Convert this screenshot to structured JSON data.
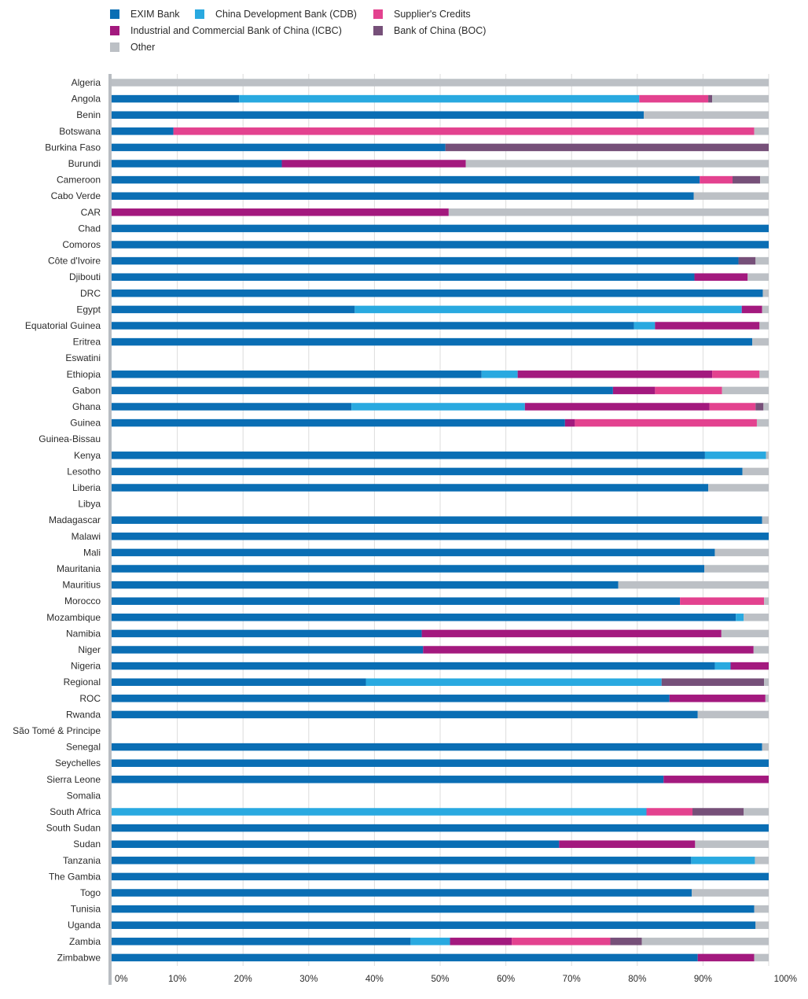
{
  "chart_data": {
    "type": "bar",
    "orientation": "horizontal",
    "stacked": true,
    "title": "",
    "xlabel": "",
    "ylabel": "",
    "xlim": [
      0,
      100
    ],
    "grid": true,
    "legend_position": "top-left",
    "x_ticks": [
      "0%",
      "10%",
      "20%",
      "30%",
      "40%",
      "50%",
      "60%",
      "70%",
      "80%",
      "90%",
      "100%"
    ],
    "categories": [
      "Algeria",
      "Angola",
      "Benin",
      "Botswana",
      "Burkina Faso",
      "Burundi",
      "Cameroon",
      "Cabo Verde",
      "CAR",
      "Chad",
      "Comoros",
      "Côte d'Ivoire",
      "Djibouti",
      "DRC",
      "Egypt",
      "Equatorial Guinea",
      "Eritrea",
      "Eswatini",
      "Ethiopia",
      "Gabon",
      "Ghana",
      "Guinea",
      "Guinea-Bissau",
      "Kenya",
      "Lesotho",
      "Liberia",
      "Libya",
      "Madagascar",
      "Malawi",
      "Mali",
      "Mauritania",
      "Mauritius",
      "Morocco",
      "Mozambique",
      "Namibia",
      "Niger",
      "Nigeria",
      "Regional",
      "ROC",
      "Rwanda",
      "São Tomé & Principe",
      "Senegal",
      "Seychelles",
      "Sierra Leone",
      "Somalia",
      "South Africa",
      "South Sudan",
      "Sudan",
      "Tanzania",
      "The Gambia",
      "Togo",
      "Tunisia",
      "Uganda",
      "Zambia",
      "Zimbabwe"
    ],
    "series": [
      {
        "name": "EXIM Bank",
        "color": "#0a6eb4",
        "values": [
          0,
          19.4,
          81,
          9.4,
          50.8,
          25.9,
          89.5,
          88.6,
          0,
          100,
          100,
          95.4,
          88.7,
          99.1,
          37,
          79.5,
          97.5,
          0,
          56.3,
          76.3,
          36.5,
          69,
          0,
          90.3,
          96,
          90.8,
          0,
          99,
          100,
          91.8,
          90.2,
          77.1,
          86.5,
          95,
          47.2,
          47.4,
          91.8,
          38.7,
          84.9,
          89.2,
          0,
          99,
          100,
          84,
          0,
          0,
          100,
          68.1,
          88.2,
          100,
          88.3,
          97.8,
          98,
          45.5,
          89.2
        ]
      },
      {
        "name": "China Development Bank (CDB)",
        "color": "#29a9e0",
        "values": [
          0,
          60.9,
          0,
          0,
          0,
          0,
          0,
          0,
          0,
          0,
          0,
          0,
          0,
          0,
          58.9,
          3.2,
          0,
          0,
          5.5,
          0,
          26.4,
          0,
          0,
          9.3,
          0,
          0,
          0,
          0,
          0,
          0,
          0,
          0,
          0,
          1.2,
          0,
          0,
          2.4,
          45,
          0,
          0,
          0,
          0,
          0,
          0,
          0,
          81.4,
          0,
          0,
          9.7,
          0,
          0,
          0,
          0,
          6,
          0
        ]
      },
      {
        "name": "Industrial and Commercial Bank of China (ICBC)",
        "color": "#a3197e",
        "values": [
          0,
          0,
          0,
          0,
          0,
          28,
          0,
          0,
          51.3,
          0,
          0,
          0,
          8.1,
          0,
          3.1,
          15.9,
          0,
          0,
          29.6,
          6.4,
          28.1,
          1.5,
          0,
          0,
          0,
          0,
          0,
          0,
          0,
          0,
          0,
          0,
          0,
          0,
          45.6,
          50.3,
          5.8,
          0,
          14.6,
          0,
          0,
          0,
          0,
          16,
          0,
          0,
          0,
          20.7,
          0,
          0,
          0,
          0,
          0,
          9.4,
          8.6
        ]
      },
      {
        "name": "Supplier's Credits",
        "color": "#e3428f",
        "values": [
          0,
          10.5,
          0,
          88.4,
          0,
          0,
          5,
          0,
          0,
          0,
          0,
          0,
          0,
          0,
          0,
          0,
          0,
          0,
          7.2,
          10.2,
          7,
          27.7,
          0,
          0,
          0,
          0,
          0,
          0,
          0,
          0,
          0,
          0,
          12.8,
          0,
          0,
          0,
          0,
          0,
          0,
          0,
          0,
          0,
          0,
          0,
          0,
          7,
          0,
          0,
          0,
          0,
          0,
          0,
          0,
          15,
          0
        ]
      },
      {
        "name": "Bank of China (BOC)",
        "color": "#765079",
        "values": [
          0,
          0.6,
          0,
          0,
          49.2,
          0,
          4.2,
          0,
          0,
          0,
          0,
          2.6,
          0,
          0,
          0,
          0,
          0,
          0,
          0,
          0,
          1.2,
          0,
          0,
          0,
          0,
          0,
          0,
          0,
          0,
          0,
          0,
          0,
          0,
          0,
          0,
          0,
          0,
          15.6,
          0,
          0,
          0,
          0,
          0,
          0,
          0,
          7.8,
          0,
          0,
          0,
          0,
          0,
          0,
          0,
          4.8,
          0
        ]
      },
      {
        "name": "Other",
        "color": "#bcc0c5",
        "values": [
          100,
          8.6,
          19,
          2.2,
          0,
          46.1,
          1.3,
          11.4,
          48.7,
          0,
          0,
          2,
          3.2,
          0.9,
          1,
          1.4,
          2.5,
          0,
          1.4,
          7.1,
          0.8,
          1.8,
          0,
          0.4,
          4,
          9.2,
          0,
          1,
          0,
          8.2,
          9.8,
          22.9,
          0.7,
          3.8,
          7.2,
          2.3,
          0,
          0.7,
          0.5,
          10.8,
          0,
          1,
          0,
          0,
          0,
          3.8,
          0,
          11.2,
          2.1,
          0,
          11.7,
          2.2,
          2,
          19.3,
          2.2
        ]
      }
    ]
  }
}
